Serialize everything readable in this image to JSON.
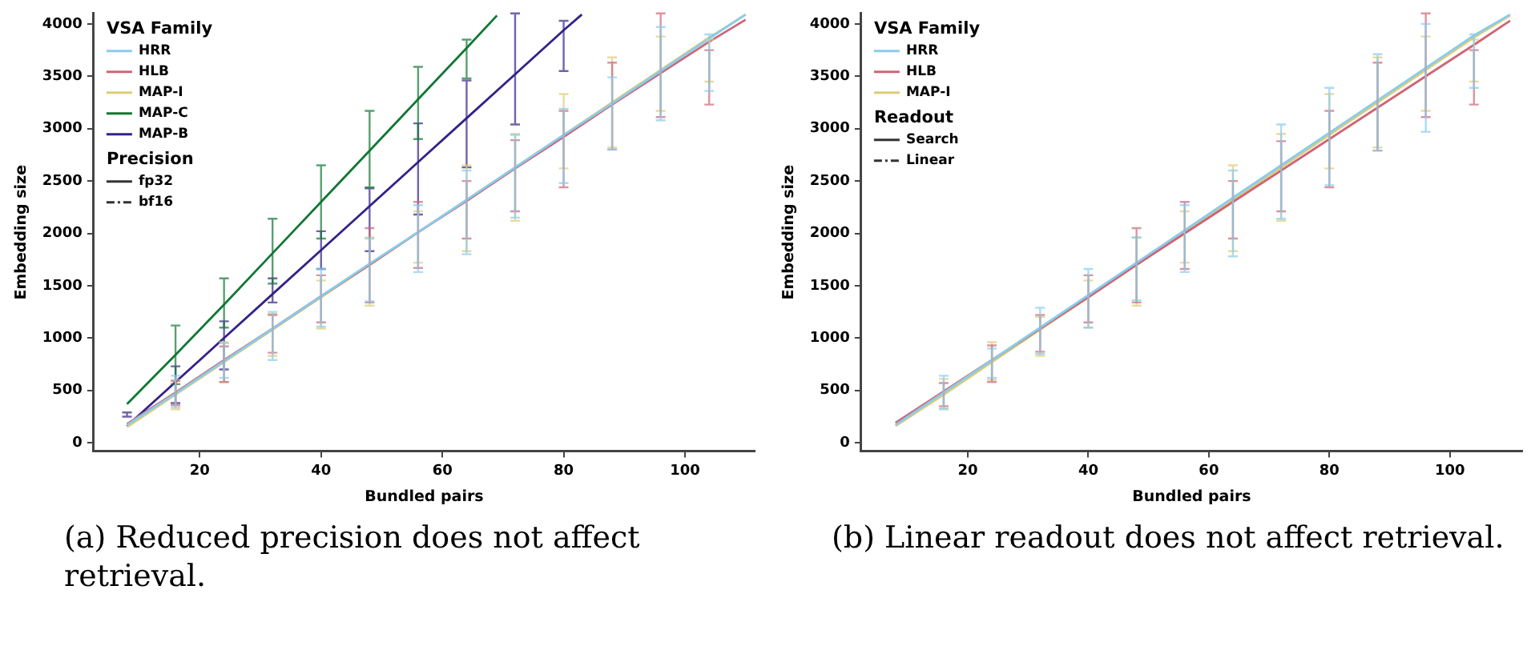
{
  "chart_data": [
    {
      "type": "line",
      "xlabel": "Bundled pairs",
      "ylabel": "Embedding size",
      "legend_title": "VSA Family",
      "legend": "top left",
      "grid": false,
      "annotations": [
        "Precision",
        "(a) Reduced precision does not affect retrieval."
      ],
      "xlim": [
        2.5,
        111.5
      ],
      "xticks": [
        20,
        40,
        60,
        80,
        100
      ],
      "ylim": [
        -80,
        4100
      ],
      "yticks": [
        0,
        500,
        1000,
        1500,
        2000,
        2500,
        3000,
        3500,
        4000
      ],
      "x": [
        8,
        16,
        24,
        32,
        40,
        48,
        56,
        64,
        72,
        80,
        88,
        96,
        104,
        110
      ],
      "series": [
        {
          "name": "HRR",
          "color": "#88ccee",
          "line_style": "solid",
          "values": [
            170,
            470,
            780,
            1090,
            1400,
            1710,
            2010,
            2320,
            2630,
            2940,
            3240,
            3550,
            3860,
            4090
          ],
          "errors": [
            null,
            [
              340,
              640
            ],
            [
              620,
              950
            ],
            [
              790,
              1250
            ],
            [
              1110,
              1660
            ],
            [
              1350,
              1950
            ],
            [
              1630,
              2270
            ],
            [
              1800,
              2600
            ],
            [
              2150,
              2940
            ],
            [
              2480,
              3190
            ],
            [
              2800,
              3490
            ],
            [
              3080,
              3970
            ],
            [
              3360,
              3900
            ],
            null
          ]
        },
        {
          "name": "HLB",
          "color": "#cc6677",
          "line_style": "solid",
          "values": [
            180,
            480,
            790,
            1090,
            1400,
            1700,
            2010,
            2310,
            2620,
            2920,
            3230,
            3530,
            3830,
            4040
          ],
          "errors": [
            null,
            [
              360,
              590
            ],
            [
              580,
              920
            ],
            [
              860,
              1220
            ],
            [
              1150,
              1600
            ],
            [
              1340,
              2050
            ],
            [
              1670,
              2300
            ],
            [
              1950,
              2500
            ],
            [
              2210,
              2890
            ],
            [
              2440,
              3170
            ],
            [
              2800,
              3630
            ],
            [
              3110,
              4100
            ],
            [
              3230,
              3750
            ],
            null
          ]
        },
        {
          "name": "MAP-I",
          "color": "#ddcc77",
          "line_style": "solid",
          "values": [
            150,
            460,
            770,
            1080,
            1390,
            1700,
            2010,
            2320,
            2630,
            2940,
            3250,
            3560,
            3870,
            4090
          ],
          "errors": [
            null,
            [
              320,
              600
            ],
            [
              580,
              960
            ],
            [
              830,
              1230
            ],
            [
              1090,
              1550
            ],
            [
              1310,
              1960
            ],
            [
              1720,
              2210
            ],
            [
              1830,
              2650
            ],
            [
              2120,
              2950
            ],
            [
              2620,
              3330
            ],
            [
              2820,
              3680
            ],
            [
              3170,
              3880
            ],
            [
              3450,
              3850
            ],
            null
          ]
        },
        {
          "name": "MAP-C",
          "color": "#117733",
          "line_style": "solid",
          "x": [
            8,
            16,
            24,
            32,
            40,
            48,
            56,
            64,
            69
          ],
          "values": [
            370,
            840,
            1320,
            1810,
            2300,
            2790,
            3280,
            3770,
            4080
          ],
          "errors": [
            null,
            [
              560,
              1120
            ],
            [
              1100,
              1570
            ],
            [
              1520,
              2140
            ],
            [
              1950,
              2650
            ],
            [
              2440,
              3170
            ],
            [
              2900,
              3590
            ],
            [
              3480,
              3850
            ],
            null
          ]
        },
        {
          "name": "MAP-B",
          "color": "#332288",
          "line_style": "solid",
          "x": [
            8,
            16,
            24,
            32,
            40,
            48,
            56,
            64,
            72,
            80,
            83
          ],
          "values": [
            160,
            580,
            1000,
            1420,
            1840,
            2260,
            2680,
            3100,
            3520,
            3940,
            4090
          ],
          "errors": [
            [
              250,
              290
            ],
            [
              380,
              730
            ],
            [
              700,
              1160
            ],
            [
              1340,
              1570
            ],
            [
              1660,
              2020
            ],
            [
              1830,
              2430
            ],
            [
              2180,
              3050
            ],
            [
              2630,
              3460
            ],
            [
              3040,
              4100
            ],
            [
              3550,
              4030
            ],
            null
          ]
        },
        {
          "name": "fp32",
          "color": "#333333",
          "line_style": "solid",
          "values": [
            null,
            null,
            null,
            null,
            null,
            null,
            null,
            null,
            null,
            null,
            null,
            null,
            null,
            null
          ]
        },
        {
          "name": "bf16",
          "color": "#333333",
          "line_style": "dashed",
          "values": [
            null,
            null,
            null,
            null,
            null,
            null,
            null,
            null,
            null,
            null,
            null,
            null,
            null,
            null
          ]
        }
      ]
    },
    {
      "type": "line",
      "xlabel": "Bundled pairs",
      "ylabel": "Embedding size",
      "legend_title": "VSA Family",
      "legend": "top left",
      "grid": false,
      "annotations": [
        "Readout",
        "(b) Linear readout does not affect retrieval."
      ],
      "xlim": [
        2.3,
        112
      ],
      "xticks": [
        20,
        40,
        60,
        80,
        100
      ],
      "ylim": [
        -80,
        4100
      ],
      "yticks": [
        0,
        500,
        1000,
        1500,
        2000,
        2500,
        3000,
        3500,
        4000
      ],
      "x": [
        8,
        16,
        24,
        32,
        40,
        48,
        56,
        64,
        72,
        80,
        88,
        96,
        104,
        110
      ],
      "series": [
        {
          "name": "HRR",
          "color": "#88ccee",
          "line_style": "solid",
          "values": [
            170,
            480,
            790,
            1100,
            1410,
            1720,
            2030,
            2340,
            2650,
            2960,
            3270,
            3580,
            3890,
            4090
          ],
          "errors": [
            null,
            [
              320,
              640
            ],
            [
              620,
              900
            ],
            [
              850,
              1290
            ],
            [
              1100,
              1660
            ],
            [
              1360,
              1960
            ],
            [
              1630,
              2270
            ],
            [
              1780,
              2600
            ],
            [
              2140,
              3040
            ],
            [
              2460,
              3390
            ],
            [
              2790,
              3710
            ],
            [
              2970,
              4000
            ],
            [
              3390,
              3900
            ],
            null
          ]
        },
        {
          "name": "HLB",
          "color": "#cc6677",
          "line_style": "solid",
          "values": [
            190,
            490,
            790,
            1090,
            1390,
            1700,
            2000,
            2300,
            2600,
            2900,
            3200,
            3500,
            3800,
            4030
          ],
          "errors": [
            null,
            [
              350,
              570
            ],
            [
              580,
              930
            ],
            [
              870,
              1220
            ],
            [
              1150,
              1600
            ],
            [
              1340,
              2050
            ],
            [
              1660,
              2300
            ],
            [
              1950,
              2500
            ],
            [
              2210,
              2880
            ],
            [
              2440,
              3170
            ],
            [
              2790,
              3630
            ],
            [
              3110,
              4100
            ],
            [
              3230,
              3750
            ],
            null
          ]
        },
        {
          "name": "MAP-I",
          "color": "#ddcc77",
          "line_style": "solid",
          "values": [
            160,
            460,
            770,
            1080,
            1390,
            1700,
            2010,
            2320,
            2630,
            2940,
            3250,
            3560,
            3870,
            4080
          ],
          "errors": [
            null,
            [
              330,
              610
            ],
            [
              600,
              960
            ],
            [
              830,
              1200
            ],
            [
              1100,
              1550
            ],
            [
              1310,
              1960
            ],
            [
              1720,
              2210
            ],
            [
              1830,
              2650
            ],
            [
              2120,
              2950
            ],
            [
              2620,
              3330
            ],
            [
              2820,
              3680
            ],
            [
              3170,
              3880
            ],
            [
              3450,
              3850
            ],
            null
          ]
        },
        {
          "name": "Search",
          "color": "#333333",
          "line_style": "solid",
          "values": [
            null,
            null,
            null,
            null,
            null,
            null,
            null,
            null,
            null,
            null,
            null,
            null,
            null,
            null
          ]
        },
        {
          "name": "Linear",
          "color": "#333333",
          "line_style": "dashed",
          "values": [
            null,
            null,
            null,
            null,
            null,
            null,
            null,
            null,
            null,
            null,
            null,
            null,
            null,
            null
          ]
        }
      ]
    }
  ]
}
